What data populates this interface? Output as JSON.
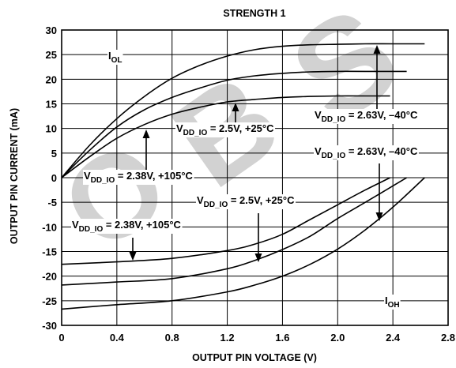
{
  "chart_data": {
    "type": "line",
    "title": "STRENGTH 1",
    "xlabel": "OUTPUT PIN VOLTAGE (V)",
    "ylabel": "OUTPUT PIN CURRENT (mA)",
    "xlim": [
      0,
      2.8
    ],
    "ylim": [
      -30,
      30
    ],
    "xticks": [
      "0",
      "0.4",
      "0.8",
      "1.2",
      "1.6",
      "2.0",
      "2.4",
      "2.8"
    ],
    "yticks": [
      "30",
      "25",
      "20",
      "15",
      "10",
      "5",
      "0",
      "-5",
      "-10",
      "-15",
      "-20",
      "-25",
      "-30"
    ],
    "grid": true,
    "watermark": "OBS",
    "series": [
      {
        "name": "IOL, VDD_IO = 2.63V, -40°C",
        "x": [
          0,
          0.2,
          0.4,
          0.6,
          0.8,
          1.0,
          1.2,
          1.4,
          1.6,
          1.8,
          2.0,
          2.2,
          2.4,
          2.63
        ],
        "y": [
          0,
          6.5,
          12,
          16.5,
          20.2,
          22.8,
          24.7,
          26,
          26.7,
          27,
          27.1,
          27.2,
          27.2,
          27.2
        ]
      },
      {
        "name": "IOL, VDD_IO = 2.5V, +25°C",
        "x": [
          0,
          0.2,
          0.4,
          0.6,
          0.8,
          1.0,
          1.2,
          1.4,
          1.6,
          1.8,
          2.0,
          2.2,
          2.5
        ],
        "y": [
          0,
          5.5,
          10.3,
          13.8,
          16.3,
          18.2,
          19.8,
          20.7,
          21.2,
          21.5,
          21.6,
          21.6,
          21.6
        ]
      },
      {
        "name": "IOL, VDD_IO = 2.38V, +105°C",
        "x": [
          0,
          0.2,
          0.4,
          0.6,
          0.8,
          1.0,
          1.2,
          1.4,
          1.6,
          1.8,
          2.0,
          2.2,
          2.38
        ],
        "y": [
          0,
          4.2,
          8,
          10.8,
          12.9,
          14.3,
          15.4,
          15.9,
          16.3,
          16.5,
          16.6,
          16.6,
          16.6
        ]
      },
      {
        "name": "IOH, VDD_IO = 2.38V, +105°C",
        "x": [
          0,
          0.4,
          0.8,
          1.2,
          1.4,
          1.6,
          1.8,
          2.0,
          2.2,
          2.38
        ],
        "y": [
          -17.6,
          -17.1,
          -16.4,
          -14.8,
          -13.5,
          -11.5,
          -8.5,
          -5.5,
          -2.5,
          0
        ]
      },
      {
        "name": "IOH, VDD_IO = 2.5V, +25°C",
        "x": [
          0,
          0.4,
          0.8,
          1.2,
          1.4,
          1.6,
          1.8,
          2.0,
          2.2,
          2.5
        ],
        "y": [
          -21.8,
          -21.2,
          -20.5,
          -18.5,
          -16.8,
          -14.6,
          -11.9,
          -8.3,
          -5,
          0
        ]
      },
      {
        "name": "IOH, VDD_IO = 2.63V, -40°C",
        "x": [
          0,
          0.4,
          0.8,
          1.2,
          1.4,
          1.6,
          1.8,
          2.0,
          2.2,
          2.4,
          2.63
        ],
        "y": [
          -26.7,
          -25.8,
          -25,
          -23.2,
          -21.8,
          -20,
          -17.6,
          -14.5,
          -10.6,
          -6,
          0
        ]
      }
    ],
    "annotations": [
      {
        "main": "I",
        "sub": "OL",
        "rest": ""
      },
      {
        "main": "I",
        "sub": "OH",
        "rest": ""
      },
      {
        "main": "V",
        "sub": "DD_IO",
        "rest": " = 2.5V, +25°C"
      },
      {
        "main": "V",
        "sub": "DD_IO",
        "rest": " = 2.63V, –40°C"
      },
      {
        "main": "V",
        "sub": "DD_IO",
        "rest": " = 2.38V, +105°C"
      },
      {
        "main": "V",
        "sub": "DD_IO",
        "rest": " = 2.63V, –40°C"
      },
      {
        "main": "V",
        "sub": "DD_IO",
        "rest": " = 2.5V, +25°C"
      },
      {
        "main": "V",
        "sub": "DD_IO",
        "rest": " = 2.38V, +105°C"
      }
    ]
  }
}
